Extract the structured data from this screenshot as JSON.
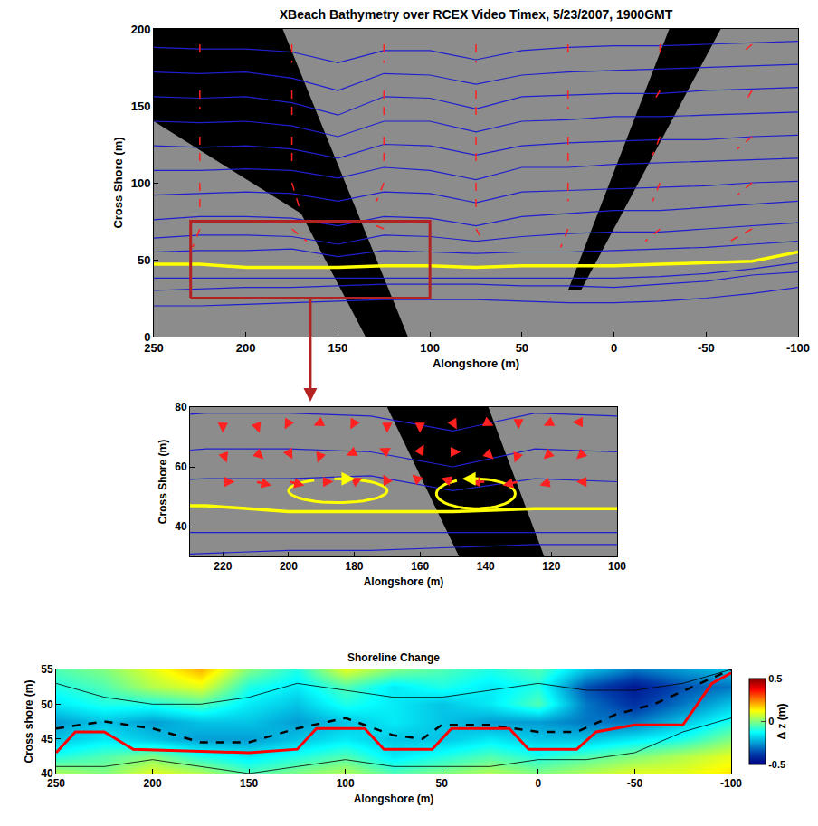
{
  "chart_data": [
    {
      "type": "map",
      "title": "XBeach Bathymetry over RCEX Video Timex, 5/23/2007, 1900GMT",
      "xlabel": "Alongshore (m)",
      "ylabel": "Cross Shore (m)",
      "xlim": [
        250,
        -100
      ],
      "ylim": [
        0,
        200
      ],
      "xticks": [
        250,
        200,
        150,
        100,
        50,
        0,
        -50,
        -100
      ],
      "yticks": [
        0,
        50,
        100,
        150,
        200
      ],
      "masks": [
        {
          "x": [
            250,
            180,
            112,
            135,
            170,
            250
          ],
          "y": [
            200,
            200,
            0,
            0,
            80,
            140
          ]
        },
        {
          "x": [
            -30,
            -58,
            18,
            25
          ],
          "y": [
            200,
            200,
            30,
            30
          ]
        }
      ],
      "contours": {
        "color": "#1f1fd0",
        "x": [
          250,
          225,
          200,
          175,
          150,
          125,
          100,
          75,
          50,
          25,
          0,
          -25,
          -50,
          -75,
          -100
        ],
        "lines": [
          [
            20,
            20,
            21,
            22,
            23,
            24,
            24,
            24,
            23,
            22,
            22,
            23,
            25,
            28,
            32
          ],
          [
            30,
            31,
            32,
            32,
            33,
            34,
            34,
            34,
            33,
            33,
            32,
            34,
            36,
            40,
            42
          ],
          [
            38,
            38,
            38,
            38,
            38,
            38,
            38,
            38,
            38,
            38,
            38,
            39,
            41,
            44,
            48
          ],
          [
            55,
            56,
            56,
            57,
            52,
            56,
            55,
            54,
            55,
            55,
            56,
            57,
            58,
            60,
            62
          ],
          [
            64,
            66,
            66,
            65,
            60,
            66,
            65,
            62,
            65,
            67,
            68,
            68,
            70,
            72,
            74
          ],
          [
            76,
            78,
            78,
            77,
            72,
            78,
            77,
            72,
            78,
            80,
            82,
            82,
            84,
            86,
            88
          ],
          [
            92,
            93,
            94,
            93,
            88,
            94,
            93,
            87,
            94,
            95,
            96,
            97,
            98,
            100,
            101
          ],
          [
            108,
            108,
            109,
            108,
            103,
            110,
            108,
            102,
            110,
            110,
            112,
            113,
            114,
            115,
            116
          ],
          [
            124,
            123,
            124,
            122,
            116,
            125,
            124,
            118,
            124,
            126,
            127,
            128,
            128,
            130,
            131
          ],
          [
            140,
            139,
            140,
            137,
            130,
            140,
            140,
            133,
            140,
            141,
            143,
            143,
            144,
            145,
            146
          ],
          [
            156,
            155,
            156,
            152,
            144,
            156,
            155,
            148,
            156,
            157,
            158,
            158,
            160,
            161,
            162
          ],
          [
            172,
            171,
            172,
            168,
            160,
            171,
            170,
            164,
            170,
            172,
            173,
            174,
            175,
            176,
            177
          ],
          [
            188,
            187,
            187,
            185,
            178,
            186,
            186,
            180,
            186,
            188,
            189,
            189,
            190,
            191,
            192
          ]
        ]
      },
      "shoreline": {
        "color": "#ffff00",
        "x": [
          250,
          225,
          200,
          175,
          150,
          125,
          100,
          75,
          50,
          25,
          0,
          -25,
          -50,
          -75,
          -100
        ],
        "values": [
          47,
          47,
          45,
          45,
          45,
          46,
          46,
          45,
          46,
          46,
          46,
          47,
          48,
          49,
          55
        ]
      },
      "vectors": {
        "color": "#ff2020",
        "line_style": "dashed",
        "x": [
          225,
          175,
          125,
          75,
          25,
          -25,
          -75
        ],
        "y": [
          70,
          100,
          130,
          160,
          190
        ],
        "u": [
          [
            0.1,
            -0.2,
            0.2,
            -0.1,
            0.1,
            0.2,
            0.3
          ],
          [
            0.0,
            -0.1,
            0.1,
            0.0,
            0.0,
            0.1,
            0.2
          ],
          [
            0.0,
            0.0,
            0.0,
            0.0,
            0.0,
            0.1,
            0.2
          ],
          [
            0.0,
            0.0,
            0.0,
            0.0,
            0.0,
            0.1,
            0.1
          ],
          [
            0.0,
            0.0,
            0.0,
            0.0,
            0.0,
            0.0,
            0.1
          ]
        ],
        "v": [
          [
            -0.3,
            -0.2,
            0.1,
            -0.2,
            -0.3,
            -0.2,
            -0.2
          ],
          [
            -0.4,
            -0.4,
            -0.3,
            -0.4,
            -0.3,
            -0.3,
            -0.2
          ],
          [
            -0.4,
            -0.5,
            -0.4,
            -0.5,
            -0.4,
            -0.3,
            -0.2
          ],
          [
            -0.3,
            -0.5,
            -0.4,
            -0.5,
            -0.3,
            -0.2,
            -0.2
          ],
          [
            -0.2,
            -0.3,
            -0.3,
            -0.3,
            -0.2,
            -0.2,
            -0.1
          ]
        ]
      },
      "zoom_box": {
        "color": "#b22222",
        "xlim": [
          230,
          100
        ],
        "ylim": [
          25,
          75
        ]
      }
    },
    {
      "type": "map",
      "xlabel": "Alongshore (m)",
      "ylabel": "Cross Shore (m)",
      "xlim": [
        230,
        100
      ],
      "ylim": [
        30,
        80
      ],
      "xticks": [
        220,
        200,
        180,
        160,
        140,
        120,
        100
      ],
      "yticks": [
        40,
        60,
        80
      ],
      "masks": [
        {
          "x": [
            250,
            180,
            112,
            135,
            170,
            250
          ],
          "y": [
            200,
            200,
            0,
            0,
            80,
            140
          ]
        }
      ],
      "contours": {
        "color": "#1f1fd0",
        "x": [
          250,
          225,
          200,
          175,
          150,
          125,
          100,
          75,
          50,
          25,
          0,
          -25,
          -50,
          -75,
          -100
        ],
        "lines": [
          [
            20,
            20,
            21,
            22,
            23,
            24,
            24,
            24,
            23,
            22,
            22,
            23,
            25,
            28,
            32
          ],
          [
            30,
            31,
            32,
            32,
            33,
            34,
            34,
            34,
            33,
            33,
            32,
            34,
            36,
            40,
            42
          ],
          [
            38,
            38,
            38,
            38,
            38,
            38,
            38,
            38,
            38,
            38,
            38,
            39,
            41,
            44,
            48
          ],
          [
            55,
            56,
            56,
            57,
            52,
            56,
            55,
            54,
            55,
            55,
            56,
            57,
            58,
            60,
            62
          ],
          [
            64,
            66,
            66,
            65,
            60,
            66,
            65,
            62,
            65,
            67,
            68,
            68,
            70,
            72,
            74
          ],
          [
            76,
            78,
            78,
            77,
            72,
            78,
            77,
            72,
            78,
            80,
            82,
            82,
            84,
            86,
            88
          ]
        ]
      },
      "shoreline": {
        "color": "#ffff00",
        "x": [
          250,
          225,
          200,
          175,
          150,
          125,
          100,
          75,
          50,
          25,
          0,
          -25,
          -50,
          -75,
          -100
        ],
        "values": [
          47,
          47,
          45,
          45,
          45,
          46,
          46,
          45,
          46,
          46,
          46,
          47,
          48,
          49,
          55
        ]
      },
      "vectors": {
        "color": "#ff2020",
        "line_style": "solid",
        "x": [
          220,
          210,
          200,
          190,
          180,
          170,
          160,
          150,
          140,
          130,
          120,
          110
        ],
        "y": [
          55,
          65,
          75
        ],
        "u": [
          [
            -0.3,
            -0.4,
            -0.4,
            -0.3,
            -0.2,
            0.1,
            0.2,
            0.3,
            0.4,
            0.4,
            0.3,
            0.2
          ],
          [
            -0.1,
            -0.2,
            -0.1,
            0.1,
            0.2,
            0.2,
            -0.1,
            -0.2,
            -0.2,
            0.1,
            0.2,
            0.2
          ],
          [
            0.0,
            -0.1,
            0.1,
            0.2,
            0.1,
            0.0,
            0.0,
            -0.1,
            -0.2,
            0.0,
            0.2,
            0.3
          ]
        ],
        "v": [
          [
            0.0,
            -0.1,
            -0.1,
            0.0,
            0.1,
            0.2,
            0.2,
            0.1,
            0.0,
            -0.1,
            -0.1,
            0.0
          ],
          [
            -0.3,
            -0.2,
            -0.2,
            -0.3,
            -0.1,
            0.1,
            0.2,
            0.0,
            -0.2,
            -0.3,
            -0.2,
            -0.2
          ],
          [
            -0.3,
            -0.3,
            -0.2,
            -0.1,
            -0.2,
            -0.3,
            -0.3,
            -0.2,
            -0.1,
            -0.2,
            -0.1,
            0.0
          ]
        ]
      },
      "eddies": {
        "color": "#ffff00",
        "cells": [
          {
            "x": 185,
            "y": 52,
            "rx": 15,
            "ry": 4
          },
          {
            "x": 143,
            "y": 51,
            "rx": 12,
            "ry": 5
          }
        ]
      }
    },
    {
      "type": "heatmap",
      "title": "Shoreline Change",
      "xlabel": "Alongshore (m)",
      "ylabel": "Cross shore (m)",
      "xlim": [
        250,
        -100
      ],
      "ylim": [
        40,
        55
      ],
      "xticks": [
        250,
        200,
        150,
        100,
        50,
        0,
        -50,
        -100
      ],
      "yticks": [
        40,
        45,
        50,
        55
      ],
      "x": [
        250,
        225,
        200,
        175,
        150,
        125,
        100,
        75,
        50,
        25,
        0,
        -25,
        -50,
        -75,
        -100
      ],
      "y": [
        40,
        42.5,
        45,
        47.5,
        50,
        52.5,
        55
      ],
      "z": [
        [
          0.05,
          0.0,
          0.1,
          0.05,
          -0.05,
          0.0,
          0.05,
          -0.05,
          0.0,
          0.05,
          0.0,
          0.05,
          0.1,
          0.1,
          0.15
        ],
        [
          -0.1,
          -0.05,
          0.0,
          -0.1,
          -0.15,
          -0.1,
          -0.05,
          -0.15,
          -0.1,
          -0.05,
          -0.1,
          -0.05,
          0.0,
          0.05,
          0.1
        ],
        [
          -0.2,
          -0.15,
          -0.2,
          -0.25,
          -0.25,
          -0.2,
          -0.15,
          -0.2,
          -0.2,
          -0.15,
          -0.2,
          -0.2,
          -0.15,
          -0.1,
          0.0
        ],
        [
          -0.25,
          -0.2,
          -0.25,
          -0.2,
          -0.2,
          -0.25,
          -0.2,
          -0.15,
          -0.2,
          -0.25,
          -0.25,
          -0.3,
          -0.3,
          -0.2,
          -0.1
        ],
        [
          -0.15,
          -0.1,
          -0.1,
          -0.05,
          -0.15,
          -0.2,
          -0.1,
          -0.15,
          -0.2,
          -0.15,
          -0.05,
          -0.3,
          -0.4,
          -0.3,
          -0.2
        ],
        [
          -0.1,
          -0.05,
          0.05,
          0.1,
          -0.1,
          -0.15,
          -0.05,
          -0.15,
          -0.1,
          -0.15,
          -0.1,
          -0.35,
          -0.45,
          -0.35,
          -0.3
        ],
        [
          -0.05,
          0.0,
          0.1,
          0.2,
          0.0,
          -0.1,
          0.1,
          0.0,
          -0.05,
          -0.1,
          -0.05,
          -0.2,
          -0.3,
          -0.25,
          -0.2
        ]
      ],
      "colorbar": {
        "title": "Δ z (m)",
        "range": [
          -0.5,
          0.5
        ],
        "ticks": [
          -0.5,
          0,
          0.5
        ]
      },
      "contours": {
        "color": "#000000",
        "x": [
          250,
          225,
          200,
          175,
          150,
          125,
          100,
          75,
          50,
          25,
          0,
          -25,
          -50,
          -75,
          -100
        ],
        "lines": [
          [
            53,
            51,
            50,
            50,
            51,
            53,
            52,
            51,
            51,
            52,
            53,
            52,
            52,
            53,
            55
          ],
          [
            41,
            41,
            42,
            41,
            40,
            41,
            42,
            41,
            41,
            41,
            42,
            42,
            43,
            46,
            48
          ]
        ]
      },
      "series": [
        {
          "color": "#000000",
          "line_style": "dashed",
          "x": [
            250,
            225,
            200,
            175,
            150,
            125,
            100,
            75,
            60,
            50,
            25,
            0,
            -20,
            -40,
            -60,
            -80,
            -100
          ],
          "values": [
            46.5,
            47.5,
            46.5,
            44.5,
            44.5,
            46.5,
            48,
            45.5,
            45,
            47,
            47,
            46,
            46,
            48.5,
            50,
            52.5,
            55
          ]
        },
        {
          "color": "#ff0000",
          "line_style": "solid",
          "x": [
            250,
            240,
            225,
            210,
            150,
            125,
            115,
            90,
            80,
            55,
            45,
            15,
            5,
            -20,
            -30,
            -50,
            -75,
            -90,
            -100
          ],
          "values": [
            43,
            46,
            46,
            43.5,
            43,
            43.5,
            46.5,
            46.5,
            43.5,
            43.5,
            46.5,
            46.5,
            43.5,
            43.5,
            46,
            47,
            47,
            53,
            54.5
          ]
        }
      ]
    }
  ]
}
